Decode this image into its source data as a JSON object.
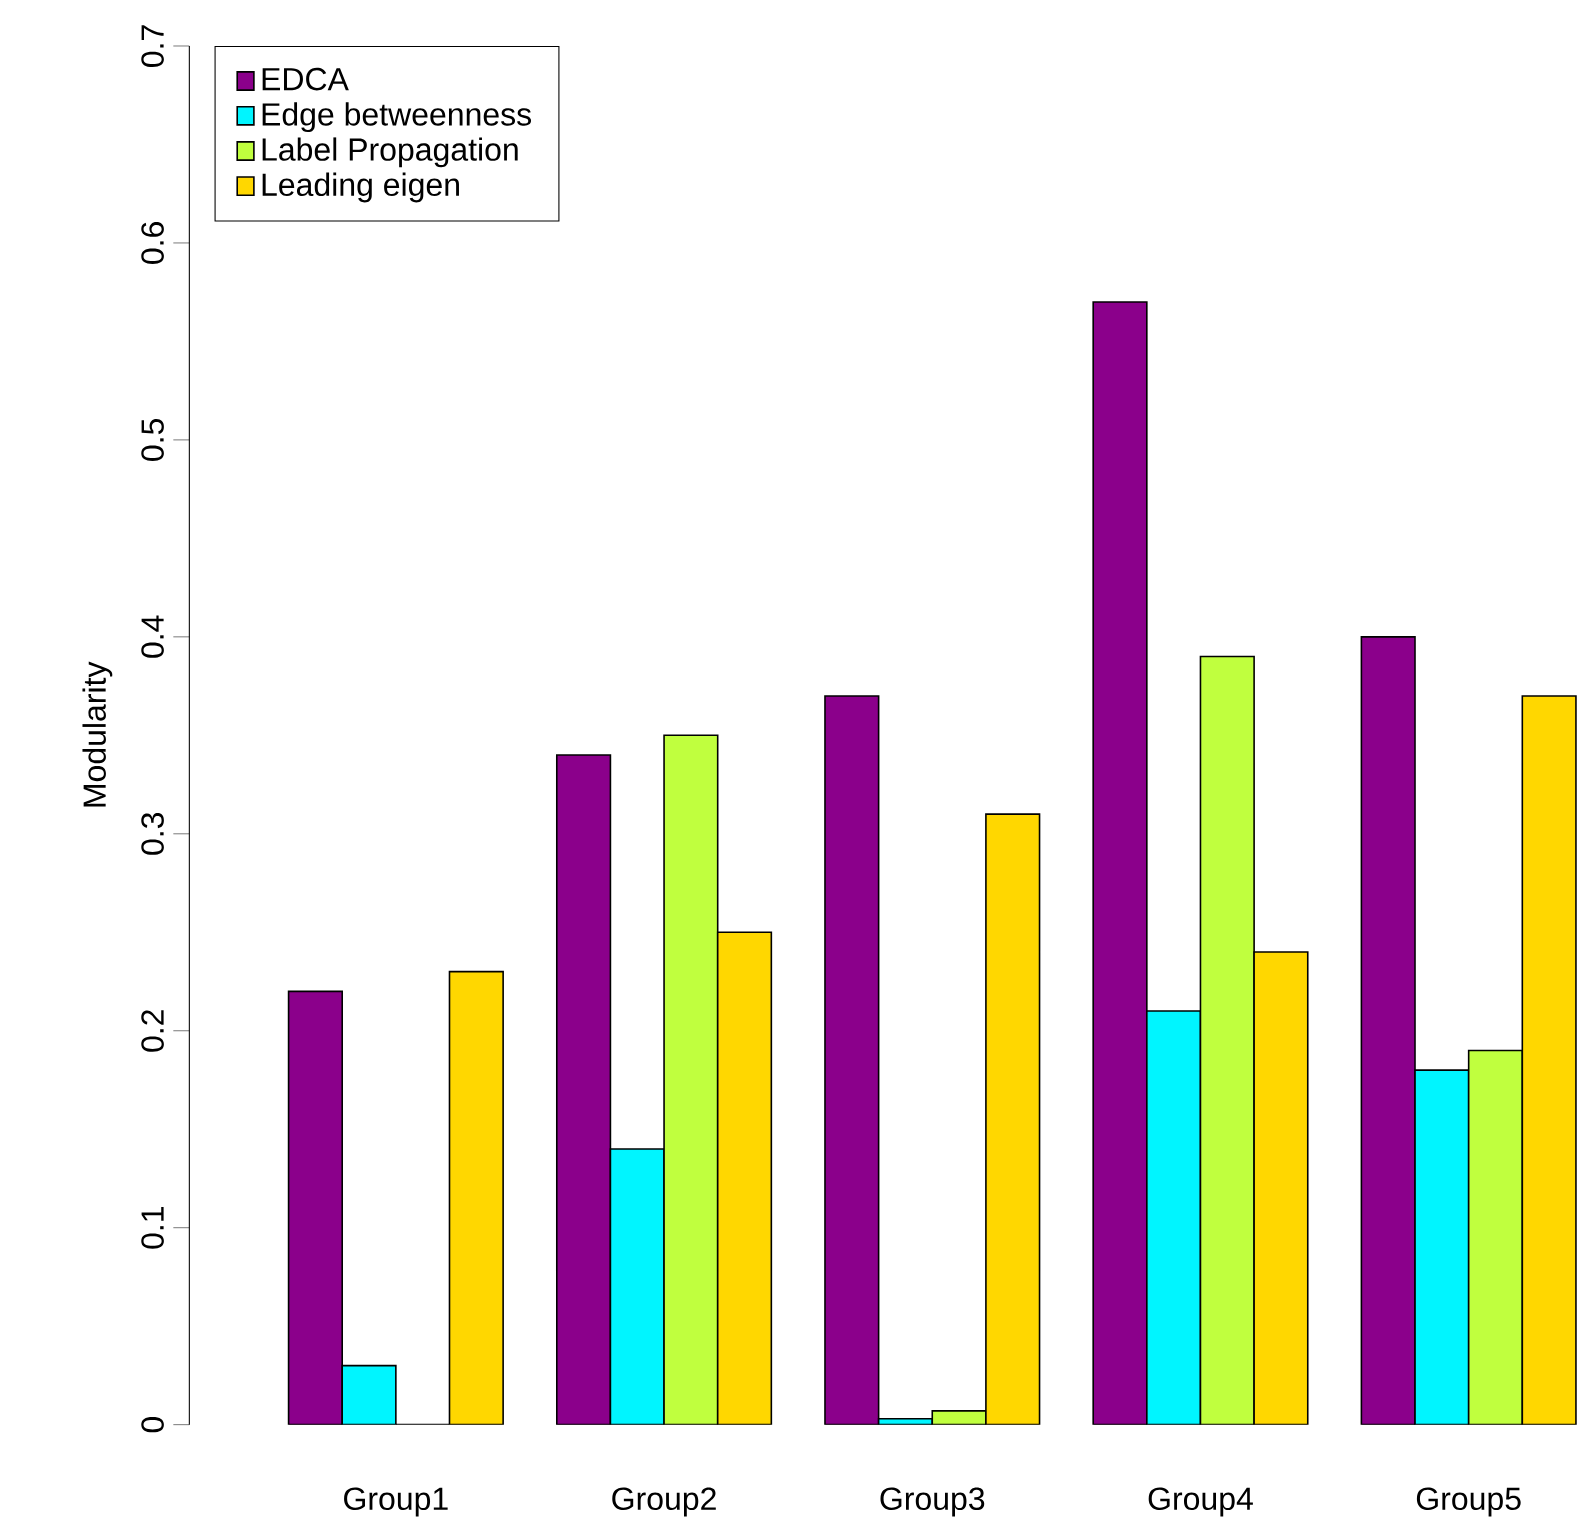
{
  "chart_data": {
    "type": "bar",
    "ylabel": "Modularity",
    "categories": [
      "Group1",
      "Group2",
      "Group3",
      "Group4",
      "Group5"
    ],
    "series": [
      {
        "name": "EDCA",
        "color": "#8b008b",
        "values": [
          0.22,
          0.34,
          0.37,
          0.57,
          0.4
        ]
      },
      {
        "name": "Edge betweenness",
        "color": "#00f5ff",
        "values": [
          0.03,
          0.14,
          0.003,
          0.21,
          0.18
        ]
      },
      {
        "name": "Label Propagation",
        "color": "#c0ff3e",
        "values": [
          0,
          0.35,
          0.007,
          0.39,
          0.19
        ]
      },
      {
        "name": "Leading eigen",
        "color": "#ffd700",
        "values": [
          0.23,
          0.25,
          0.31,
          0.24,
          0.37
        ]
      }
    ],
    "ylim": [
      0,
      0.7
    ],
    "yticks": [
      0,
      0.1,
      0.2,
      0.3,
      0.4,
      0.5,
      0.6,
      0.7
    ],
    "legend": "top left"
  }
}
